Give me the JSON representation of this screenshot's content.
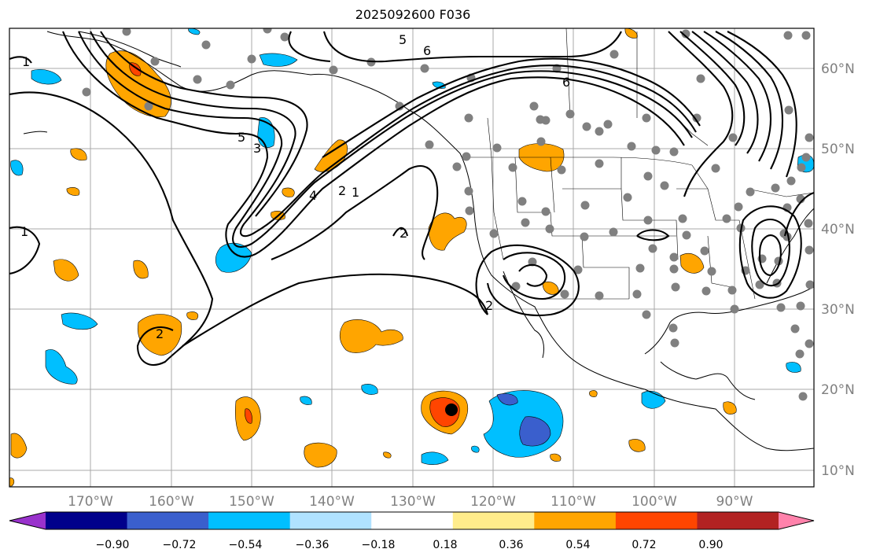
{
  "map": {
    "title": "2025092600 F036",
    "lon_labels": [
      "170°W",
      "160°W",
      "150°W",
      "140°W",
      "130°W",
      "120°W",
      "110°W",
      "100°W",
      "90°W"
    ],
    "lat_labels": [
      "60°N",
      "50°N",
      "40°N",
      "30°N",
      "20°N",
      "10°N"
    ],
    "contour_labels": [
      "1",
      "5",
      "6",
      "5",
      "3",
      "4",
      "2",
      "1",
      "2",
      "2",
      "6",
      "1",
      "2"
    ],
    "colorbar": {
      "ticks": [
        "−0.90",
        "−0.72",
        "−0.54",
        "−0.36",
        "−0.18",
        "0.18",
        "0.36",
        "0.54",
        "0.72",
        "0.90"
      ],
      "colors": [
        "#9932cc",
        "#00008b",
        "#3a5fcd",
        "#00bfff",
        "#b0e2ff",
        "#ffffff",
        "#ffec8b",
        "#ffa500",
        "#ff4500",
        "#b22222",
        "#ff82ab"
      ]
    },
    "icons": {
      "station": "gray-dot-station-marker",
      "center": "black-dot-marker"
    }
  }
}
